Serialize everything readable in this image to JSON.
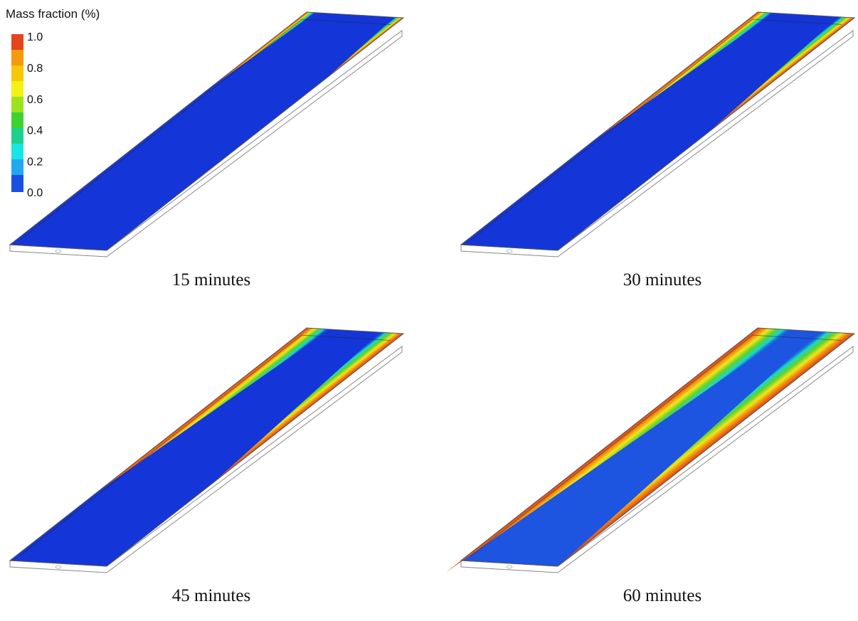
{
  "legend": {
    "title": "Mass fraction (%)",
    "labels": [
      "1.0",
      "0.8",
      "0.6",
      "0.4",
      "0.2",
      "0.0"
    ]
  },
  "panels": [
    {
      "caption": "15 minutes"
    },
    {
      "caption": "30 minutes"
    },
    {
      "caption": "45 minutes"
    },
    {
      "caption": "60 minutes"
    }
  ]
}
